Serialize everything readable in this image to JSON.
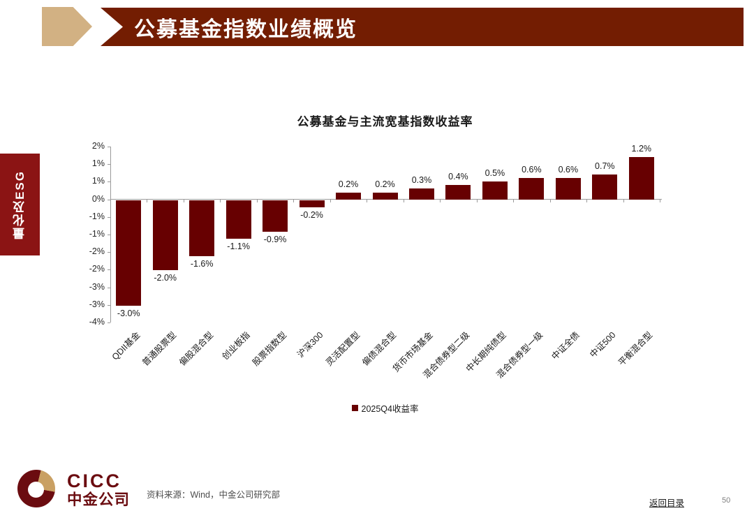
{
  "header": {
    "title": "公募基金指数业绩概览"
  },
  "sidebar": {
    "label": "量化及ESG"
  },
  "chart_data": {
    "type": "bar",
    "title": "公募基金与主流宽基指数收益率",
    "categories": [
      "QDII基金",
      "普通股票型",
      "偏股混合型",
      "创业板指",
      "股票指数型",
      "沪深300",
      "灵活配置型",
      "偏债混合型",
      "货币市场基金",
      "混合债券型二级",
      "中长期纯债型",
      "混合债券型一级",
      "中证全债",
      "中证500",
      "平衡混合型"
    ],
    "values": [
      -3.0,
      -2.0,
      -1.6,
      -1.1,
      -0.9,
      -0.2,
      0.2,
      0.2,
      0.3,
      0.4,
      0.5,
      0.6,
      0.6,
      0.7,
      1.2
    ],
    "data_labels": [
      "-3.0%",
      "-2.0%",
      "-1.6%",
      "-1.1%",
      "-0.9%",
      "-0.2%",
      "0.2%",
      "0.2%",
      "0.3%",
      "0.4%",
      "0.5%",
      "0.6%",
      "0.6%",
      "0.7%",
      "1.2%"
    ],
    "y_tick_labels": [
      "2%",
      "1%",
      "1%",
      "0%",
      "-1%",
      "-1%",
      "-2%",
      "-2%",
      "-3%",
      "-3%",
      "-4%"
    ],
    "y_max": 1.5,
    "y_min": -3.5,
    "y_step": 0.5,
    "ylabel": "",
    "xlabel": "",
    "grid": false,
    "legend": [
      "2025Q4收益率"
    ],
    "legend_position": "bottom",
    "bar_color": "#670001"
  },
  "footer": {
    "logo_en": "CICC",
    "logo_cn": "中金公司",
    "source": "资料来源：Wind，中金公司研究部",
    "back_link": "返回目录",
    "page_number": "50"
  },
  "colors": {
    "bar": "#670001",
    "banner": "#731d02",
    "banner_arrow": "#d2b183",
    "sidebar_tab": "#8b1414",
    "logo_red": "#6b0c10",
    "logo_gold": "#c9a063",
    "axis_gray": "#9a9a9a"
  }
}
